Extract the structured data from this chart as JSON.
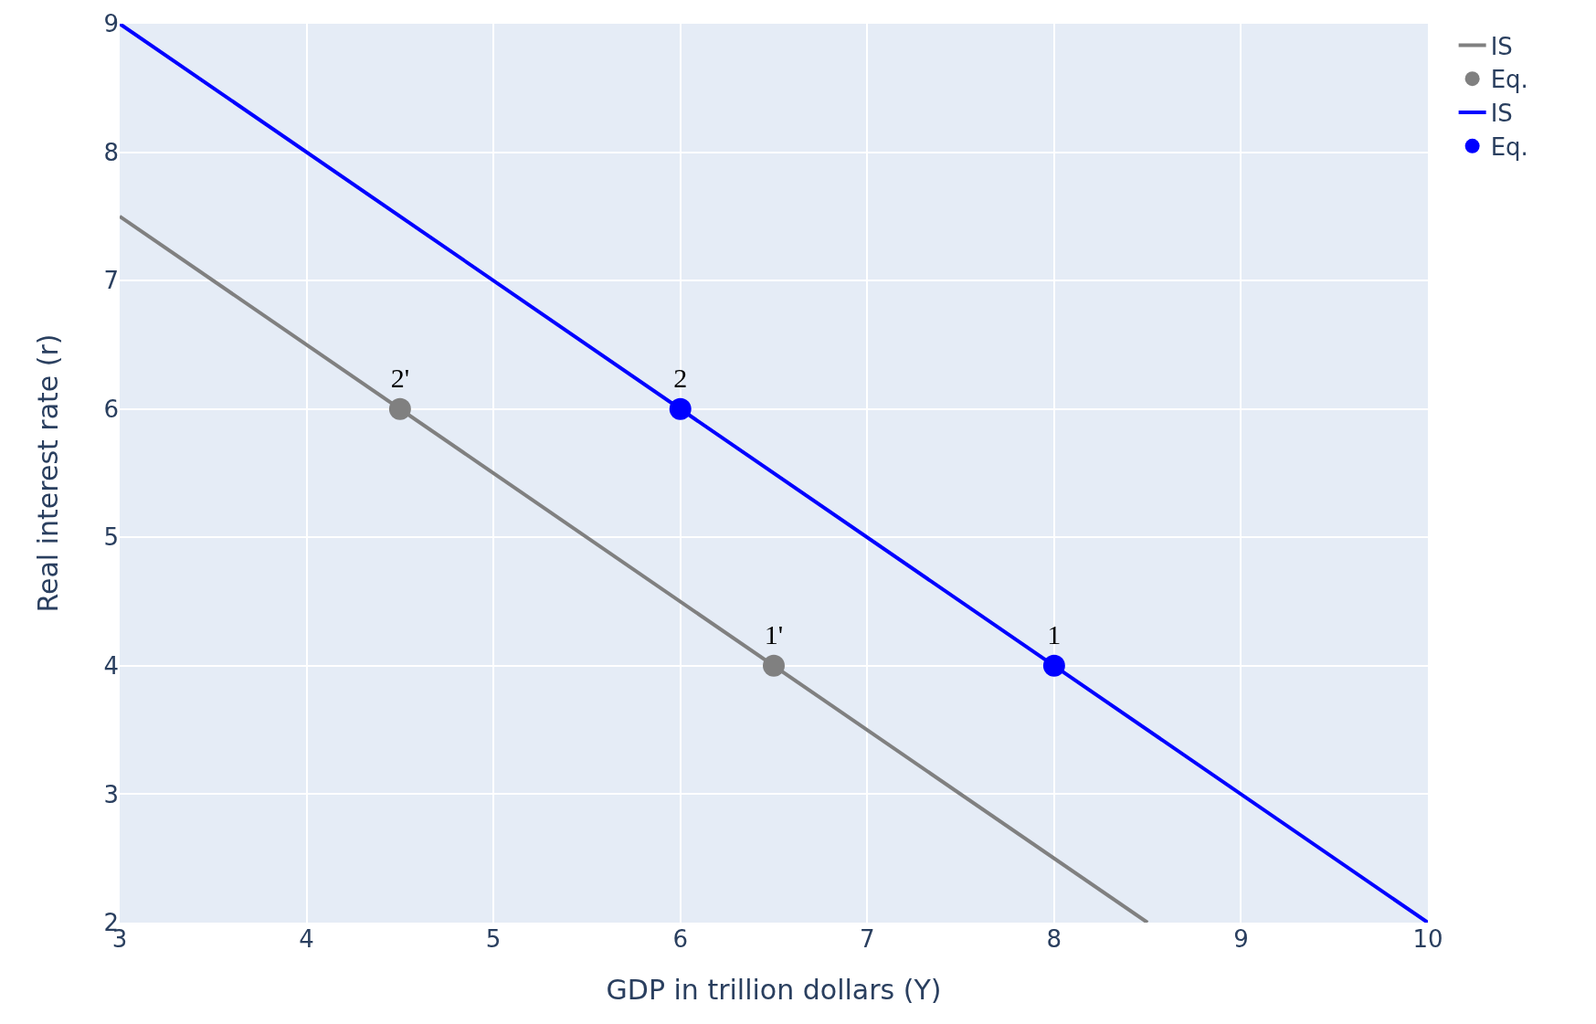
{
  "chart_data": {
    "type": "line",
    "xlabel": "GDP in trillion dollars (Y)",
    "ylabel": "Real interest rate (r)",
    "xlim": [
      3,
      10
    ],
    "xticks": [
      3,
      4,
      5,
      6,
      7,
      8,
      9,
      10
    ],
    "ylim": [
      2,
      9
    ],
    "yticks": [
      2,
      3,
      4,
      5,
      6,
      7,
      8,
      9
    ],
    "grid": true,
    "legend": "top right",
    "line_style": "solid",
    "series": [
      {
        "name": "IS",
        "color": "#808080",
        "marker": "none",
        "x": [
          3,
          8.5
        ],
        "values": [
          7.5,
          2
        ]
      },
      {
        "name": "Eq.",
        "color": "#808080",
        "type": "scatter",
        "marker": "circle",
        "x": [
          4.5,
          6.5
        ],
        "values": [
          6,
          4
        ]
      },
      {
        "name": "IS",
        "color": "#0000ff",
        "marker": "none",
        "x": [
          3,
          10
        ],
        "values": [
          9,
          2
        ]
      },
      {
        "name": "Eq.",
        "color": "#0000ff",
        "type": "scatter",
        "marker": "circle",
        "x": [
          6,
          8
        ],
        "values": [
          6,
          4
        ]
      }
    ],
    "annotations": [
      {
        "text": "2'",
        "x": 4.5,
        "y": 6
      },
      {
        "text": "1'",
        "x": 6.5,
        "y": 4
      },
      {
        "text": "2",
        "x": 6,
        "y": 6
      },
      {
        "text": "1",
        "x": 8,
        "y": 4
      }
    ]
  }
}
